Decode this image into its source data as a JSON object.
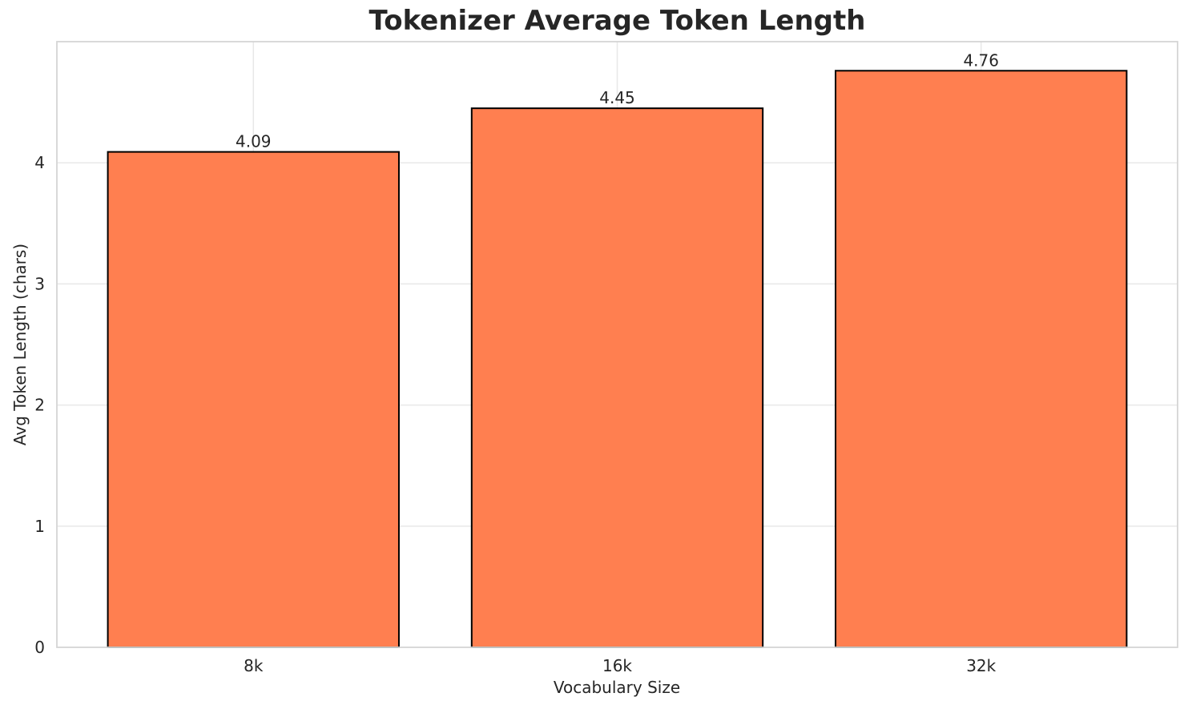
{
  "chart_data": {
    "type": "bar",
    "title": "Tokenizer Average Token Length",
    "xlabel": "Vocabulary Size",
    "ylabel": "Avg Token Length (chars)",
    "categories": [
      "8k",
      "16k",
      "32k"
    ],
    "values": [
      4.09,
      4.45,
      4.76
    ],
    "value_labels": [
      "4.09",
      "4.45",
      "4.76"
    ],
    "yticks": [
      0,
      1,
      2,
      3,
      4
    ],
    "ytick_labels": [
      "0",
      "1",
      "2",
      "3",
      "4"
    ],
    "ylim": [
      0,
      5.0
    ],
    "grid": true,
    "legend": "none",
    "colors": {
      "bar_fill": "#FF7F50",
      "bar_edge": "#000000",
      "grid_line": "#E8E8E8",
      "spine": "#D5D5D5",
      "text": "#262626",
      "background": "#FFFFFF"
    }
  }
}
